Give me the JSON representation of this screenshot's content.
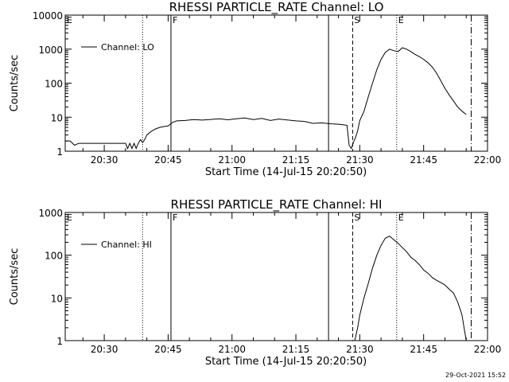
{
  "chart_data": [
    {
      "type": "line",
      "title": "RHESSI PARTICLE_RATE Channel: LO",
      "xlabel": "Start Time (14-Jul-15 20:20:50)",
      "ylabel": "Counts/sec",
      "x_tick_labels": [
        "20:30",
        "20:45",
        "21:00",
        "21:15",
        "21:30",
        "21:45",
        "22:00"
      ],
      "y_tick_labels": [
        "1",
        "10",
        "100",
        "1000",
        "10000"
      ],
      "y_scale": "log",
      "ylim": [
        1,
        10000
      ],
      "xlim": [
        "20:20:50",
        "22:00:00"
      ],
      "legend": {
        "position": "top-left",
        "entries": [
          "Channel: LO"
        ]
      },
      "series": [
        {
          "name": "Channel: LO",
          "x": [
            "20:20:50",
            "20:22:00",
            "20:23:00",
            "20:24:00",
            "20:26:00",
            "20:28:00",
            "20:30:00",
            "20:32:00",
            "20:34:00",
            "20:35:00",
            "20:35:30",
            "20:36:00",
            "20:36:30",
            "20:37:00",
            "20:37:30",
            "20:38:00",
            "20:38:30",
            "20:39:00",
            "20:39:30",
            "20:40:00",
            "20:41:00",
            "20:42:00",
            "20:43:00",
            "20:44:00",
            "20:45:00",
            "20:46:00",
            "20:47:00",
            "20:49:00",
            "20:51:00",
            "20:53:00",
            "20:55:00",
            "20:57:00",
            "20:59:00",
            "21:01:00",
            "21:03:00",
            "21:05:00",
            "21:07:00",
            "21:09:00",
            "21:11:00",
            "21:13:00",
            "21:15:00",
            "21:17:00",
            "21:19:00",
            "21:21:00",
            "21:23:00",
            "21:25:00",
            "21:26:00",
            "21:27:00",
            "21:27:30",
            "21:28:00",
            "21:28:30",
            "21:29:00",
            "21:29:30",
            "21:30:00",
            "21:31:00",
            "21:32:00",
            "21:33:00",
            "21:34:00",
            "21:35:00",
            "21:36:00",
            "21:37:00",
            "21:38:00",
            "21:39:00",
            "21:40:00",
            "21:41:00",
            "21:42:00",
            "21:43:00",
            "21:44:00",
            "21:45:00",
            "21:46:00",
            "21:47:00",
            "21:48:00",
            "21:49:00",
            "21:50:00",
            "21:51:00",
            "21:52:00",
            "21:53:00",
            "21:54:00",
            "21:55:00"
          ],
          "y": [
            2,
            2,
            1.5,
            1.7,
            1.7,
            1.7,
            1.7,
            1.7,
            1.7,
            1.7,
            1.2,
            1.7,
            1.2,
            1.7,
            1.2,
            1.7,
            2.2,
            1.8,
            2.2,
            3,
            3.8,
            4.5,
            5,
            5.3,
            5.5,
            7,
            7.8,
            8,
            8.5,
            8.2,
            8.6,
            9,
            8.4,
            9,
            9.5,
            8.5,
            9.2,
            8,
            8.8,
            8.3,
            7.8,
            7.5,
            6.6,
            6.8,
            6.4,
            6.2,
            6.0,
            5.8,
            1.5,
            1.2,
            1.8,
            2.5,
            4,
            8,
            15,
            40,
            100,
            250,
            500,
            800,
            1000,
            900,
            850,
            1100,
            1000,
            850,
            700,
            600,
            500,
            400,
            300,
            200,
            120,
            70,
            45,
            30,
            20,
            15,
            12
          ]
        }
      ],
      "markers": [
        {
          "label": "E",
          "time": "20:20:50",
          "style": "solid"
        },
        {
          "label": "",
          "time": "20:39:00",
          "style": "dotted"
        },
        {
          "label": "F",
          "time": "20:45:40",
          "style": "solid"
        },
        {
          "label": "",
          "time": "21:22:40",
          "style": "solid"
        },
        {
          "label": "S",
          "time": "21:28:20",
          "style": "dashed"
        },
        {
          "label": "E",
          "time": "21:38:40",
          "style": "dotted"
        },
        {
          "label": "",
          "time": "21:56:10",
          "style": "dashdot"
        }
      ]
    },
    {
      "type": "line",
      "title": "RHESSI PARTICLE_RATE Channel: HI",
      "xlabel": "Start Time (14-Jul-15 20:20:50)",
      "ylabel": "Counts/sec",
      "x_tick_labels": [
        "20:30",
        "20:45",
        "21:00",
        "21:15",
        "21:30",
        "21:45",
        "22:00"
      ],
      "y_tick_labels": [
        "1",
        "10",
        "100",
        "1000"
      ],
      "y_scale": "log",
      "ylim": [
        1,
        1000
      ],
      "xlim": [
        "20:20:50",
        "22:00:00"
      ],
      "legend": {
        "position": "top-left",
        "entries": [
          "Channel: HI"
        ]
      },
      "series": [
        {
          "name": "Channel: HI",
          "x": [
            "21:28:50",
            "21:29:30",
            "21:30:00",
            "21:31:00",
            "21:32:00",
            "21:33:00",
            "21:34:00",
            "21:35:00",
            "21:36:00",
            "21:37:00",
            "21:38:00",
            "21:39:00",
            "21:40:00",
            "21:41:00",
            "21:42:00",
            "21:43:00",
            "21:44:00",
            "21:45:00",
            "21:46:00",
            "21:47:00",
            "21:48:00",
            "21:49:00",
            "21:50:00",
            "21:51:00",
            "21:52:00",
            "21:53:00",
            "21:54:00",
            "21:54:30",
            "21:55:00"
          ],
          "y": [
            1,
            2,
            4,
            10,
            22,
            50,
            100,
            170,
            250,
            280,
            230,
            190,
            150,
            120,
            90,
            75,
            60,
            45,
            38,
            30,
            26,
            23,
            20,
            16,
            13,
            8,
            4,
            2,
            1
          ]
        }
      ],
      "markers": [
        {
          "label": "E",
          "time": "20:20:50",
          "style": "solid"
        },
        {
          "label": "",
          "time": "20:39:00",
          "style": "dotted"
        },
        {
          "label": "F",
          "time": "20:45:40",
          "style": "solid"
        },
        {
          "label": "",
          "time": "21:22:40",
          "style": "solid"
        },
        {
          "label": "S",
          "time": "21:28:20",
          "style": "dashed"
        },
        {
          "label": "E",
          "time": "21:38:40",
          "style": "dotted"
        },
        {
          "label": "",
          "time": "21:56:10",
          "style": "dashdot"
        }
      ]
    }
  ],
  "footer": {
    "timestamp": "29-Oct-2021 15:52"
  }
}
